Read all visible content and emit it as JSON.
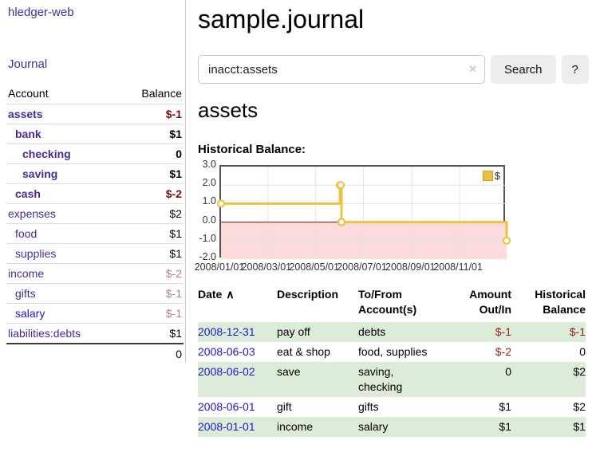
{
  "colors": {
    "link_purple": "#4a2a97",
    "link_blue": "#1b18cf",
    "negative_strong": "#7a0c0c",
    "negative_soft": "#b97c7c",
    "negative_register": "#8f1f1f",
    "row_highlight_green": "#ddecd9",
    "chart_line_gold": "#edc240",
    "chart_negative_region_pink": "#fbdbdb",
    "chart_zero_line_dark_red": "#8c0a0a",
    "button_gray": "#ededed"
  },
  "sidebar": {
    "app_title": "hledger-web",
    "journal_label": "Journal",
    "accounts_table": {
      "headers": {
        "account": "Account",
        "balance": "Balance"
      },
      "rows": [
        {
          "account": "assets",
          "indent": 1,
          "bold": true,
          "balance": "$-1",
          "balance_style": "neg-strong"
        },
        {
          "account": "bank",
          "indent": 2,
          "bold": true,
          "balance": "$1",
          "balance_style": "pos"
        },
        {
          "account": "checking",
          "indent": 3,
          "bold": true,
          "balance": "0",
          "balance_style": "pos"
        },
        {
          "account": "saving",
          "indent": 3,
          "bold": true,
          "balance": "$1",
          "balance_style": "pos"
        },
        {
          "account": "cash",
          "indent": 2,
          "bold": true,
          "balance": "$-2",
          "balance_style": "neg-strong"
        },
        {
          "account": "expenses",
          "indent": 1,
          "bold": false,
          "balance": "$2",
          "balance_style": "pos"
        },
        {
          "account": "food",
          "indent": 2,
          "bold": false,
          "balance": "$1",
          "balance_style": "pos"
        },
        {
          "account": "supplies",
          "indent": 2,
          "bold": false,
          "balance": "$1",
          "balance_style": "pos"
        },
        {
          "account": "income",
          "indent": 1,
          "bold": false,
          "balance": "$-2",
          "balance_style": "neg-soft"
        },
        {
          "account": "gifts",
          "indent": 2,
          "bold": false,
          "balance": "$-1",
          "balance_style": "neg-soft"
        },
        {
          "account": "salary",
          "indent": 2,
          "bold": false,
          "link_color": "blue",
          "balance": "$-1",
          "balance_style": "neg-soft"
        },
        {
          "account": "liabilities:debts",
          "indent": 1,
          "bold": false,
          "balance": "$1",
          "balance_style": "pos"
        }
      ],
      "total": "0"
    }
  },
  "main": {
    "title": "sample.journal",
    "search": {
      "value": "inacct:assets",
      "clear_icon": "✕",
      "search_button": "Search",
      "help_button": "?"
    },
    "account_heading": "assets",
    "chart_label": "Historical Balance:"
  },
  "chart_data": {
    "type": "line",
    "style": "step",
    "title": "Historical Balance",
    "legend": {
      "label": "$",
      "position": "top-right"
    },
    "x_domain": [
      "2008-01-01",
      "2008-12-31"
    ],
    "ylim": [
      -2,
      3
    ],
    "y_ticks": [
      3.0,
      2.0,
      1.0,
      0.0,
      -1.0,
      -2.0
    ],
    "x_ticks": [
      {
        "date": "2008-01-01",
        "label": "2008/01/01"
      },
      {
        "date": "2008-03-01",
        "label": "2008/03/01"
      },
      {
        "date": "2008-05-01",
        "label": "2008/05/01"
      },
      {
        "date": "2008-07-01",
        "label": "2008/07/01"
      },
      {
        "date": "2008-09-01",
        "label": "2008/09/01"
      },
      {
        "date": "2008-11-01",
        "label": "2008/11/01"
      }
    ],
    "series": [
      {
        "name": "$",
        "points": [
          [
            "2008-01-01",
            1
          ],
          [
            "2008-06-01",
            2
          ],
          [
            "2008-06-02",
            2
          ],
          [
            "2008-06-03",
            0
          ],
          [
            "2008-12-31",
            -1
          ]
        ]
      }
    ],
    "grid": true,
    "negative_region_shaded": true
  },
  "register": {
    "headers": {
      "date": "Date",
      "sort_icon": "∧",
      "description": "Description",
      "account": "To/From Account(s)",
      "amount": "Amount Out/In",
      "balance": "Historical Balance"
    },
    "rows": [
      {
        "date": "2008-12-31",
        "description": "pay off",
        "account": "debts",
        "amount": "$-1",
        "amount_neg": true,
        "balance": "$-1",
        "balance_neg": true,
        "highlight": true
      },
      {
        "date": "2008-06-03",
        "description": "eat & shop",
        "account": "food, supplies",
        "amount": "$-2",
        "amount_neg": true,
        "balance": "0",
        "balance_neg": false,
        "highlight": false
      },
      {
        "date": "2008-06-02",
        "description": "save",
        "account": "saving, checking",
        "amount": "0",
        "amount_neg": false,
        "balance": "$2",
        "balance_neg": false,
        "highlight": true
      },
      {
        "date": "2008-06-01",
        "description": "gift",
        "account": "gifts",
        "amount": "$1",
        "amount_neg": false,
        "balance": "$2",
        "balance_neg": false,
        "highlight": false
      },
      {
        "date": "2008-01-01",
        "description": "income",
        "account": "salary",
        "amount": "$1",
        "amount_neg": false,
        "balance": "$1",
        "balance_neg": false,
        "highlight": true
      }
    ]
  }
}
